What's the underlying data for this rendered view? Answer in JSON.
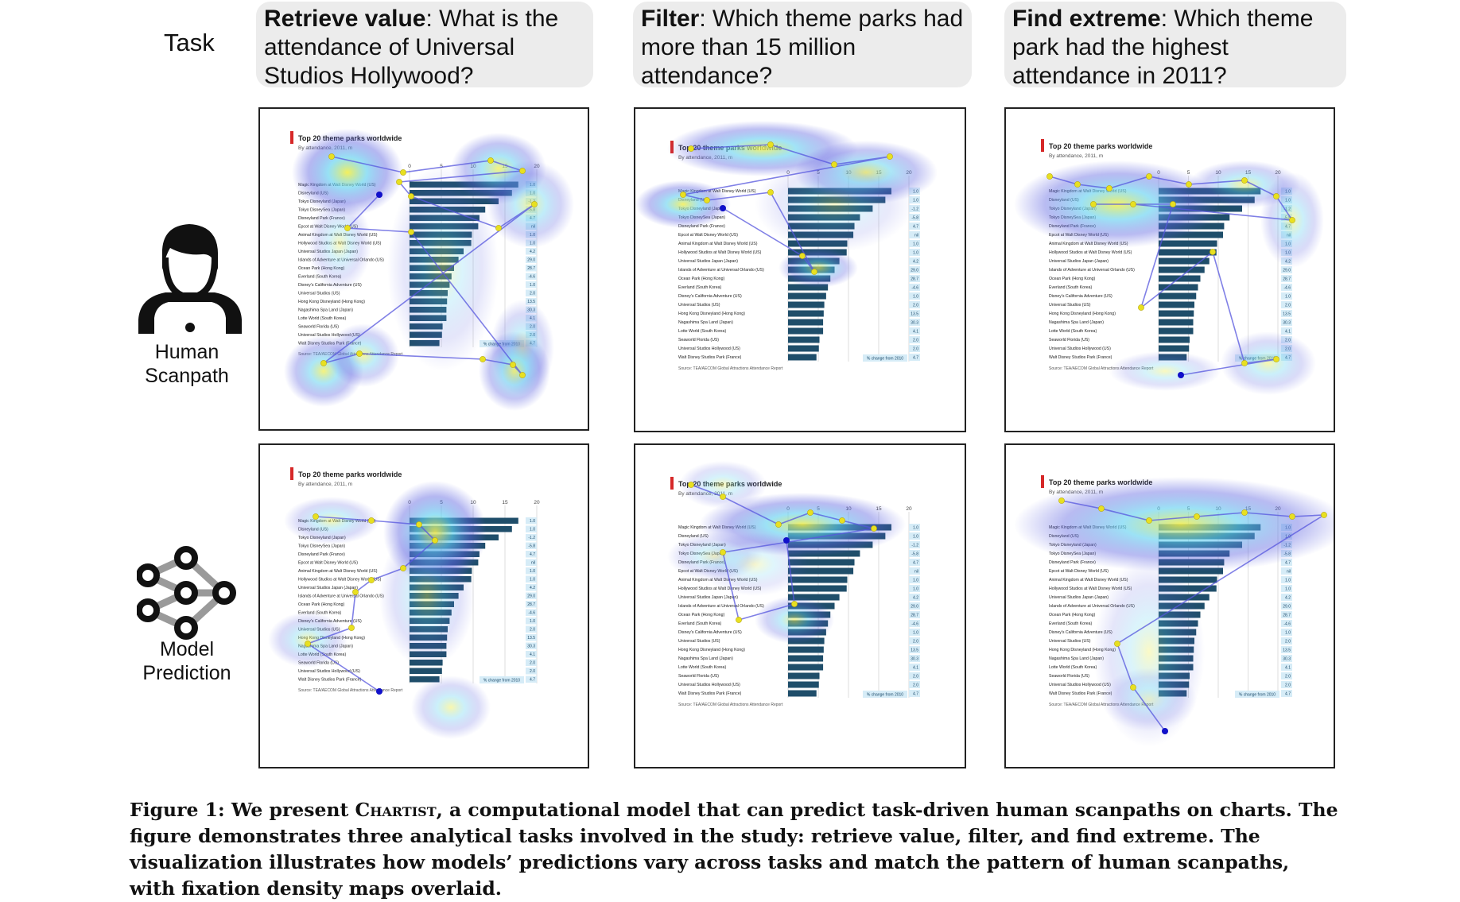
{
  "header": {
    "task_label": "Task",
    "tasks": [
      {
        "name": "Retrieve value",
        "question": ": What is the attendance of Universal Studios Hollywood?"
      },
      {
        "name": "Filter",
        "question": ": Which theme parks had more than 15 million attendance?"
      },
      {
        "name": "Find extreme",
        "question": ": Which theme park had the highest attendance in 2011?"
      }
    ]
  },
  "rows": [
    {
      "label_line1": "Human",
      "label_line2": "Scanpath",
      "icon": "person-laptop-icon"
    },
    {
      "label_line1": "Model",
      "label_line2": "Prediction",
      "icon": "neural-network-icon"
    }
  ],
  "chart": {
    "title": "Top 20 theme parks worldwide",
    "subtitle": "By attendance, 2011, m",
    "axis_ticks": [
      "0",
      "5",
      "10",
      "15",
      "20"
    ],
    "parks": [
      {
        "name": "Magic Kingdom at Walt Disney World (US)",
        "value": 17.1,
        "change": "1.0"
      },
      {
        "name": "Disneyland (US)",
        "value": 16.1,
        "change": "1.0"
      },
      {
        "name": "Tokyo Disneyland (Japan)",
        "value": 14.0,
        "change": "-1.2"
      },
      {
        "name": "Tokyo DisneySea (Japan)",
        "value": 11.9,
        "change": "-5.8"
      },
      {
        "name": "Disneyland Park (France)",
        "value": 10.99,
        "change": "4.7"
      },
      {
        "name": "Epcot at Walt Disney World (US)",
        "value": 10.8,
        "change": "nil"
      },
      {
        "name": "Animal Kingdom at Walt Disney World (US)",
        "value": 9.8,
        "change": "1.0"
      },
      {
        "name": "Hollywood Studios at Walt Disney World (US)",
        "value": 9.7,
        "change": "1.0"
      },
      {
        "name": "Universal Studios Japan (Japan)",
        "value": 8.5,
        "change": "4.2"
      },
      {
        "name": "Islands of Adventure at Universal Orlando (US)",
        "value": 7.7,
        "change": "29.0"
      },
      {
        "name": "Ocean Park (Hong Kong)",
        "value": 7.0,
        "change": "28.7"
      },
      {
        "name": "Everland (South Korea)",
        "value": 6.6,
        "change": "-4.6"
      },
      {
        "name": "Disney's California Adventure (US)",
        "value": 6.3,
        "change": "1.0"
      },
      {
        "name": "Universal Studios (US)",
        "value": 6.0,
        "change": "2.0"
      },
      {
        "name": "Hong Kong Disneyland (Hong Kong)",
        "value": 5.9,
        "change": "13.5"
      },
      {
        "name": "Nagashima Spa Land (Japan)",
        "value": 5.8,
        "change": "30.3"
      },
      {
        "name": "Lotte World (South Korea)",
        "value": 5.8,
        "change": "4.1"
      },
      {
        "name": "Seaworld Florida (US)",
        "value": 5.2,
        "change": "2.0"
      },
      {
        "name": "Universal Studios Hollywood (US)",
        "value": 5.1,
        "change": "2.0"
      },
      {
        "name": "Walt Disney Studios Park (France)",
        "value": 4.7,
        "change": "4.7"
      }
    ],
    "legend": "% change from 2010",
    "source": "Source: TEA/AECOM Global Attractions Attendance Report"
  },
  "caption": {
    "prefix": "Figure 1: We present ",
    "name": "Chartist",
    "rest": ", a computational model that can predict task-driven human scanpaths on charts. The figure demonstrates three analytical tasks involved in the study: retrieve value, filter, and find extreme. The visualization illustrates how models’ predictions vary across tasks and match the pattern of human scanpaths, with fixation density maps overlaid."
  },
  "colors": {
    "bar": "#1f4e6a",
    "heat_outer": "#5a60e0",
    "heat_mid": "#5fd0f0",
    "heat_core": "#f3ee4a",
    "path": "#5555dd",
    "fixation": "#e8e020",
    "accent": "#d62828"
  }
}
